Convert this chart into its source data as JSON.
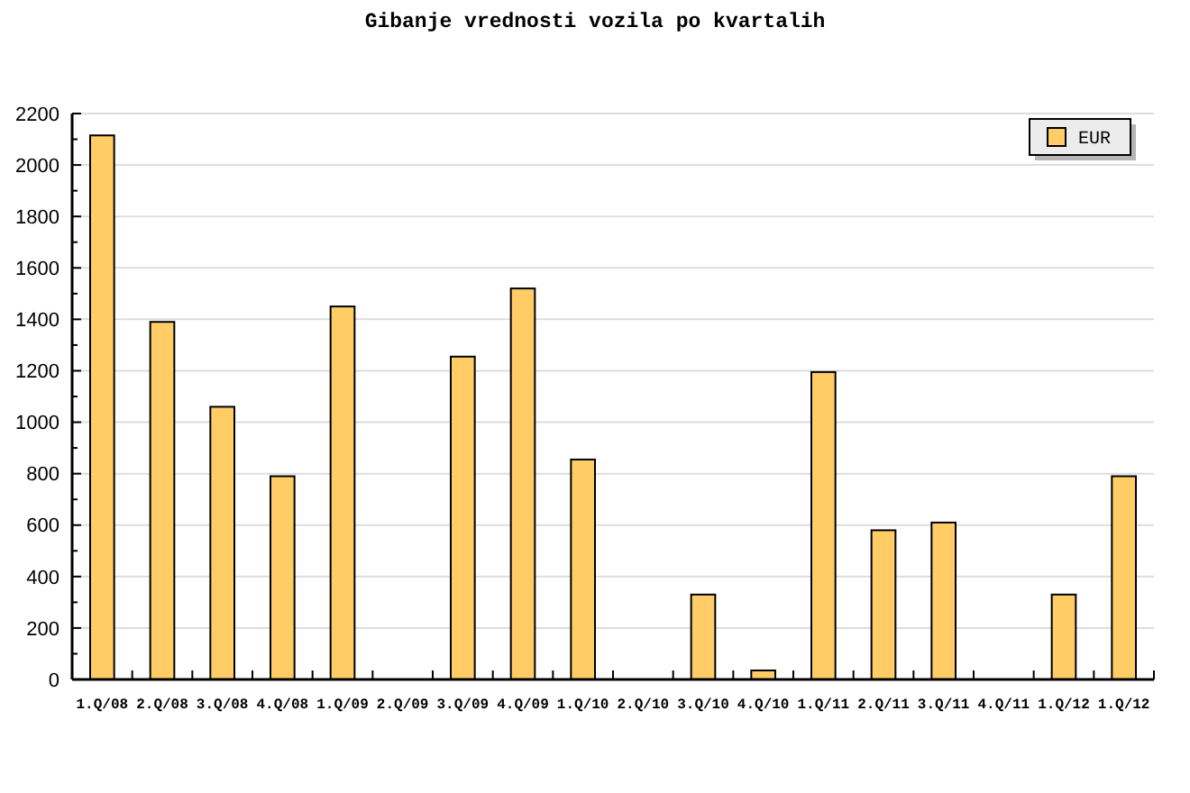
{
  "chart_data": {
    "type": "bar",
    "title": "Gibanje vrednosti vozila po kvartalih",
    "categories": [
      "1.Q/08",
      "2.Q/08",
      "3.Q/08",
      "4.Q/08",
      "1.Q/09",
      "2.Q/09",
      "3.Q/09",
      "4.Q/09",
      "1.Q/10",
      "2.Q/10",
      "3.Q/10",
      "4.Q/10",
      "1.Q/11",
      "2.Q/11",
      "3.Q/11",
      "4.Q/11",
      "1.Q/12",
      "1.Q/12"
    ],
    "series": [
      {
        "name": "EUR",
        "color": "#ffcc66",
        "values": [
          2115,
          1390,
          1060,
          790,
          1450,
          null,
          1255,
          1520,
          855,
          null,
          330,
          35,
          1195,
          580,
          610,
          null,
          330,
          790
        ]
      }
    ],
    "ylim": [
      0,
      2200
    ],
    "yticks": [
      0,
      {
        "value": 100,
        "label": null
      },
      200,
      {
        "value": 300,
        "label": null
      },
      400,
      {
        "value": 500,
        "label": null
      },
      600,
      {
        "value": 700,
        "label": null
      },
      800,
      {
        "value": 900,
        "label": null
      },
      1000,
      {
        "value": 1100,
        "label": null
      },
      1200,
      {
        "value": 1300,
        "label": null
      },
      1400,
      {
        "value": 1500,
        "label": null
      },
      1600,
      {
        "value": 1700,
        "label": null
      },
      1800,
      {
        "value": 1900,
        "label": null
      },
      2000,
      {
        "value": 2100,
        "label": null
      },
      2200
    ],
    "grid": "y",
    "legend": "top right"
  }
}
